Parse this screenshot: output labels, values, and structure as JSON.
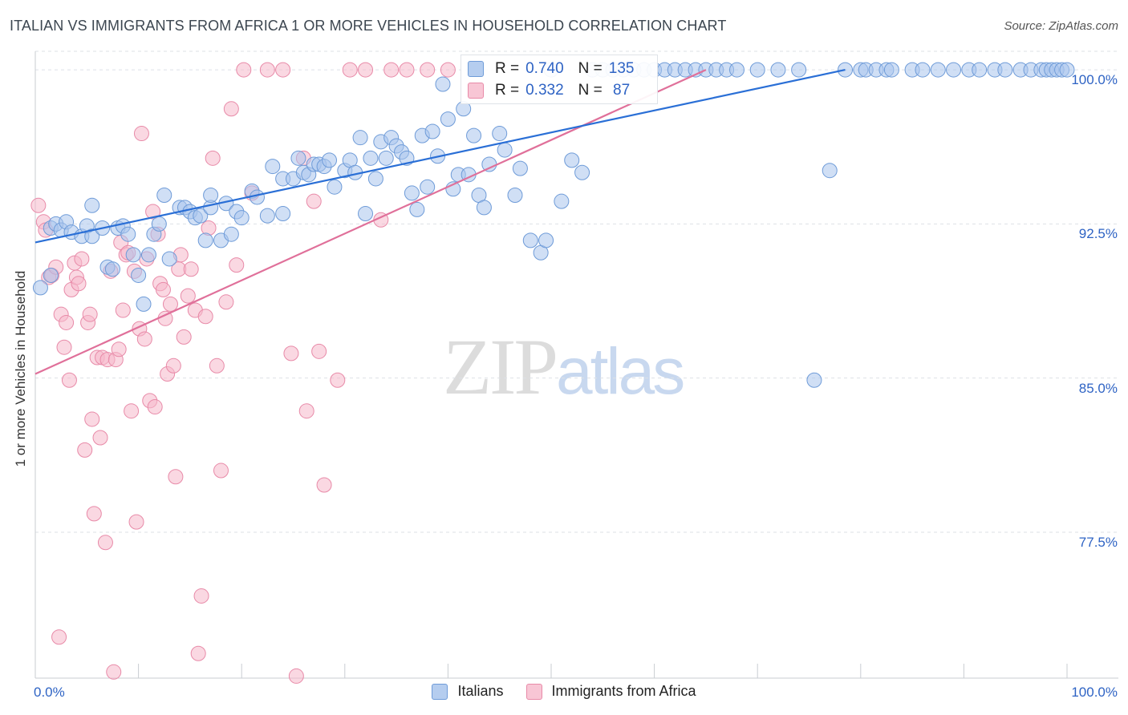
{
  "title": "ITALIAN VS IMMIGRANTS FROM AFRICA 1 OR MORE VEHICLES IN HOUSEHOLD CORRELATION CHART",
  "source": "Source: ZipAtlas.com",
  "watermark": {
    "zip": "ZIP",
    "atlas": "atlas"
  },
  "legend_top": {
    "rows": [
      {
        "r_label": "R = ",
        "r_value": "0.740",
        "n_label": "N = ",
        "n_value": "135"
      },
      {
        "r_label": "R = ",
        "r_value": "0.332",
        "n_label": "N = ",
        "n_value": " 87"
      }
    ]
  },
  "legend_bottom": [
    "Italians",
    "Immigrants from Africa"
  ],
  "chart_data": {
    "type": "scatter",
    "title": "ITALIAN VS IMMIGRANTS FROM AFRICA 1 OR MORE VEHICLES IN HOUSEHOLD CORRELATION CHART",
    "xlabel": "",
    "ylabel": "1 or more Vehicles in Household",
    "xlim": [
      0,
      100
    ],
    "ylim": [
      70.4,
      100.9
    ],
    "x_tick_labels": [
      "0.0%",
      "100.0%"
    ],
    "y_ticks": [
      77.5,
      85.0,
      92.5,
      100.0
    ],
    "y_tick_labels": [
      "77.5%",
      "85.0%",
      "92.5%",
      "100.0%"
    ],
    "grid": true,
    "legend_position": "top-center",
    "colors": {
      "italians_fill": "#a9c4ec",
      "italians_stroke": "#6e9bd8",
      "italians_line": "#2a6fd6",
      "africa_fill": "#f5b8cb",
      "africa_stroke": "#e88aa8",
      "africa_line": "#e0709a"
    },
    "series": [
      {
        "name": "Italians",
        "r": 0.74,
        "n": 135,
        "trend": {
          "x": [
            0,
            78.5
          ],
          "y": [
            91.6,
            100.0
          ]
        },
        "points": [
          [
            0.5,
            89.4
          ],
          [
            1.5,
            90.0
          ],
          [
            1.5,
            92.3
          ],
          [
            2,
            92.5
          ],
          [
            2.5,
            92.2
          ],
          [
            3,
            92.6
          ],
          [
            3.5,
            92.1
          ],
          [
            4.5,
            91.9
          ],
          [
            5,
            92.4
          ],
          [
            5.5,
            91.9
          ],
          [
            5.5,
            93.4
          ],
          [
            6.5,
            92.3
          ],
          [
            7,
            90.4
          ],
          [
            7.5,
            90.3
          ],
          [
            8,
            92.3
          ],
          [
            8.5,
            92.4
          ],
          [
            9,
            92.0
          ],
          [
            9.5,
            91.0
          ],
          [
            10,
            90.0
          ],
          [
            10.5,
            88.6
          ],
          [
            11,
            91.0
          ],
          [
            11.5,
            92.0
          ],
          [
            12,
            92.5
          ],
          [
            12.5,
            93.9
          ],
          [
            13,
            90.8
          ],
          [
            14,
            93.3
          ],
          [
            14.5,
            93.3
          ],
          [
            15,
            93.1
          ],
          [
            15.5,
            92.8
          ],
          [
            16,
            92.9
          ],
          [
            16.5,
            91.7
          ],
          [
            17,
            93.3
          ],
          [
            17,
            93.9
          ],
          [
            18,
            91.7
          ],
          [
            18.5,
            93.5
          ],
          [
            19,
            92.0
          ],
          [
            19.5,
            93.1
          ],
          [
            20,
            92.8
          ],
          [
            21,
            94.1
          ],
          [
            21.5,
            93.8
          ],
          [
            22.5,
            92.9
          ],
          [
            23,
            95.3
          ],
          [
            24,
            93.0
          ],
          [
            24,
            94.7
          ],
          [
            25,
            94.7
          ],
          [
            25.5,
            95.7
          ],
          [
            26,
            95.0
          ],
          [
            26.5,
            94.9
          ],
          [
            27,
            95.4
          ],
          [
            27.5,
            95.4
          ],
          [
            28,
            95.3
          ],
          [
            28.5,
            95.6
          ],
          [
            29,
            94.3
          ],
          [
            30,
            95.1
          ],
          [
            30.5,
            95.6
          ],
          [
            31,
            95.0
          ],
          [
            31.5,
            96.7
          ],
          [
            32,
            93.0
          ],
          [
            32.5,
            95.7
          ],
          [
            33,
            94.7
          ],
          [
            33.5,
            96.5
          ],
          [
            34,
            95.7
          ],
          [
            34.5,
            96.7
          ],
          [
            35,
            96.3
          ],
          [
            35.5,
            96.0
          ],
          [
            36,
            95.7
          ],
          [
            36.5,
            94.0
          ],
          [
            37,
            93.2
          ],
          [
            37.5,
            96.8
          ],
          [
            38,
            94.3
          ],
          [
            38.5,
            97.0
          ],
          [
            39,
            95.8
          ],
          [
            39.5,
            99.3
          ],
          [
            40,
            97.6
          ],
          [
            40.5,
            94.2
          ],
          [
            41,
            94.9
          ],
          [
            41.5,
            98.1
          ],
          [
            42,
            94.9
          ],
          [
            42.5,
            96.8
          ],
          [
            43,
            93.9
          ],
          [
            43.5,
            93.3
          ],
          [
            44,
            95.4
          ],
          [
            45,
            96.9
          ],
          [
            45.5,
            96.1
          ],
          [
            46.5,
            93.9
          ],
          [
            47,
            95.2
          ],
          [
            48,
            91.7
          ],
          [
            49,
            91.1
          ],
          [
            49.5,
            91.7
          ],
          [
            50,
            100.0
          ],
          [
            51,
            93.6
          ],
          [
            52,
            95.6
          ],
          [
            53,
            95.0
          ],
          [
            54,
            100.0
          ],
          [
            55,
            100.0
          ],
          [
            56,
            100.0
          ],
          [
            57,
            100.0
          ],
          [
            58,
            100.0
          ],
          [
            59,
            100.0
          ],
          [
            60,
            100.0
          ],
          [
            61,
            100.0
          ],
          [
            62,
            100.0
          ],
          [
            63,
            100.0
          ],
          [
            64,
            100.0
          ],
          [
            65,
            100.0
          ],
          [
            66,
            100.0
          ],
          [
            67,
            100.0
          ],
          [
            68,
            100.0
          ],
          [
            70,
            100.0
          ],
          [
            72,
            100.0
          ],
          [
            74,
            100.0
          ],
          [
            75.5,
            84.9
          ],
          [
            77,
            95.1
          ],
          [
            78.5,
            100.0
          ],
          [
            80,
            100.0
          ],
          [
            80.5,
            100.0
          ],
          [
            81.5,
            100.0
          ],
          [
            82.5,
            100.0
          ],
          [
            83,
            100.0
          ],
          [
            85,
            100.0
          ],
          [
            86,
            100.0
          ],
          [
            87.5,
            100.0
          ],
          [
            89,
            100.0
          ],
          [
            90.5,
            100.0
          ],
          [
            91.5,
            100.0
          ],
          [
            93,
            100.0
          ],
          [
            94,
            100.0
          ],
          [
            95.5,
            100.0
          ],
          [
            96.5,
            100.0
          ],
          [
            97.5,
            100.0
          ],
          [
            98,
            100.0
          ],
          [
            98.5,
            100.0
          ],
          [
            99,
            100.0
          ],
          [
            99.5,
            100.0
          ],
          [
            100,
            100.0
          ]
        ]
      },
      {
        "name": "Immigrants from Africa",
        "r": 0.332,
        "n": 87,
        "trend": {
          "x": [
            0,
            65
          ],
          "y": [
            85.2,
            100.0
          ]
        },
        "points": [
          [
            0.3,
            93.4
          ],
          [
            0.8,
            92.6
          ],
          [
            1,
            92.2
          ],
          [
            1.3,
            89.9
          ],
          [
            1.6,
            90.0
          ],
          [
            2,
            90.4
          ],
          [
            2.3,
            72.4
          ],
          [
            2.5,
            88.1
          ],
          [
            2.8,
            86.5
          ],
          [
            3,
            87.7
          ],
          [
            3.3,
            84.9
          ],
          [
            3.5,
            89.3
          ],
          [
            3.8,
            90.6
          ],
          [
            4,
            89.9
          ],
          [
            4.2,
            89.6
          ],
          [
            4.5,
            90.8
          ],
          [
            4.8,
            81.5
          ],
          [
            5.1,
            87.7
          ],
          [
            5.3,
            88.1
          ],
          [
            5.5,
            83.0
          ],
          [
            5.7,
            78.4
          ],
          [
            6,
            86.0
          ],
          [
            6.3,
            82.1
          ],
          [
            6.5,
            86.0
          ],
          [
            6.8,
            77.0
          ],
          [
            7,
            85.9
          ],
          [
            7.3,
            90.2
          ],
          [
            7.6,
            70.7
          ],
          [
            7.8,
            85.9
          ],
          [
            8.1,
            86.4
          ],
          [
            8.3,
            91.6
          ],
          [
            8.5,
            88.3
          ],
          [
            8.8,
            91.0
          ],
          [
            9,
            91.1
          ],
          [
            9.3,
            83.4
          ],
          [
            9.6,
            90.2
          ],
          [
            9.8,
            78.0
          ],
          [
            10.1,
            87.4
          ],
          [
            10.3,
            96.9
          ],
          [
            10.6,
            86.9
          ],
          [
            10.8,
            90.8
          ],
          [
            11.1,
            83.9
          ],
          [
            11.4,
            93.1
          ],
          [
            11.6,
            83.6
          ],
          [
            11.9,
            92.0
          ],
          [
            12.1,
            89.6
          ],
          [
            12.4,
            89.3
          ],
          [
            12.6,
            87.9
          ],
          [
            12.8,
            85.2
          ],
          [
            13.1,
            88.6
          ],
          [
            13.4,
            85.6
          ],
          [
            13.6,
            80.2
          ],
          [
            13.9,
            90.3
          ],
          [
            14.1,
            91.0
          ],
          [
            14.4,
            87.0
          ],
          [
            14.8,
            89.0
          ],
          [
            15.1,
            90.3
          ],
          [
            15.5,
            88.3
          ],
          [
            15.8,
            71.6
          ],
          [
            16.1,
            74.4
          ],
          [
            16.5,
            88.0
          ],
          [
            16.8,
            92.3
          ],
          [
            17.2,
            95.7
          ],
          [
            17.6,
            85.6
          ],
          [
            18,
            80.5
          ],
          [
            18.5,
            88.7
          ],
          [
            19,
            98.1
          ],
          [
            19.5,
            90.5
          ],
          [
            20.2,
            100.0
          ],
          [
            21,
            94.0
          ],
          [
            22.5,
            100.0
          ],
          [
            24,
            100.0
          ],
          [
            24.8,
            86.2
          ],
          [
            25.3,
            70.5
          ],
          [
            26,
            95.7
          ],
          [
            26.3,
            83.4
          ],
          [
            27,
            93.6
          ],
          [
            27.5,
            86.3
          ],
          [
            28,
            79.8
          ],
          [
            29.3,
            84.9
          ],
          [
            30.5,
            100.0
          ],
          [
            32,
            100.0
          ],
          [
            33.5,
            92.7
          ],
          [
            34.5,
            100.0
          ],
          [
            36,
            100.0
          ],
          [
            38,
            100.0
          ],
          [
            40,
            100.0
          ]
        ]
      }
    ]
  }
}
